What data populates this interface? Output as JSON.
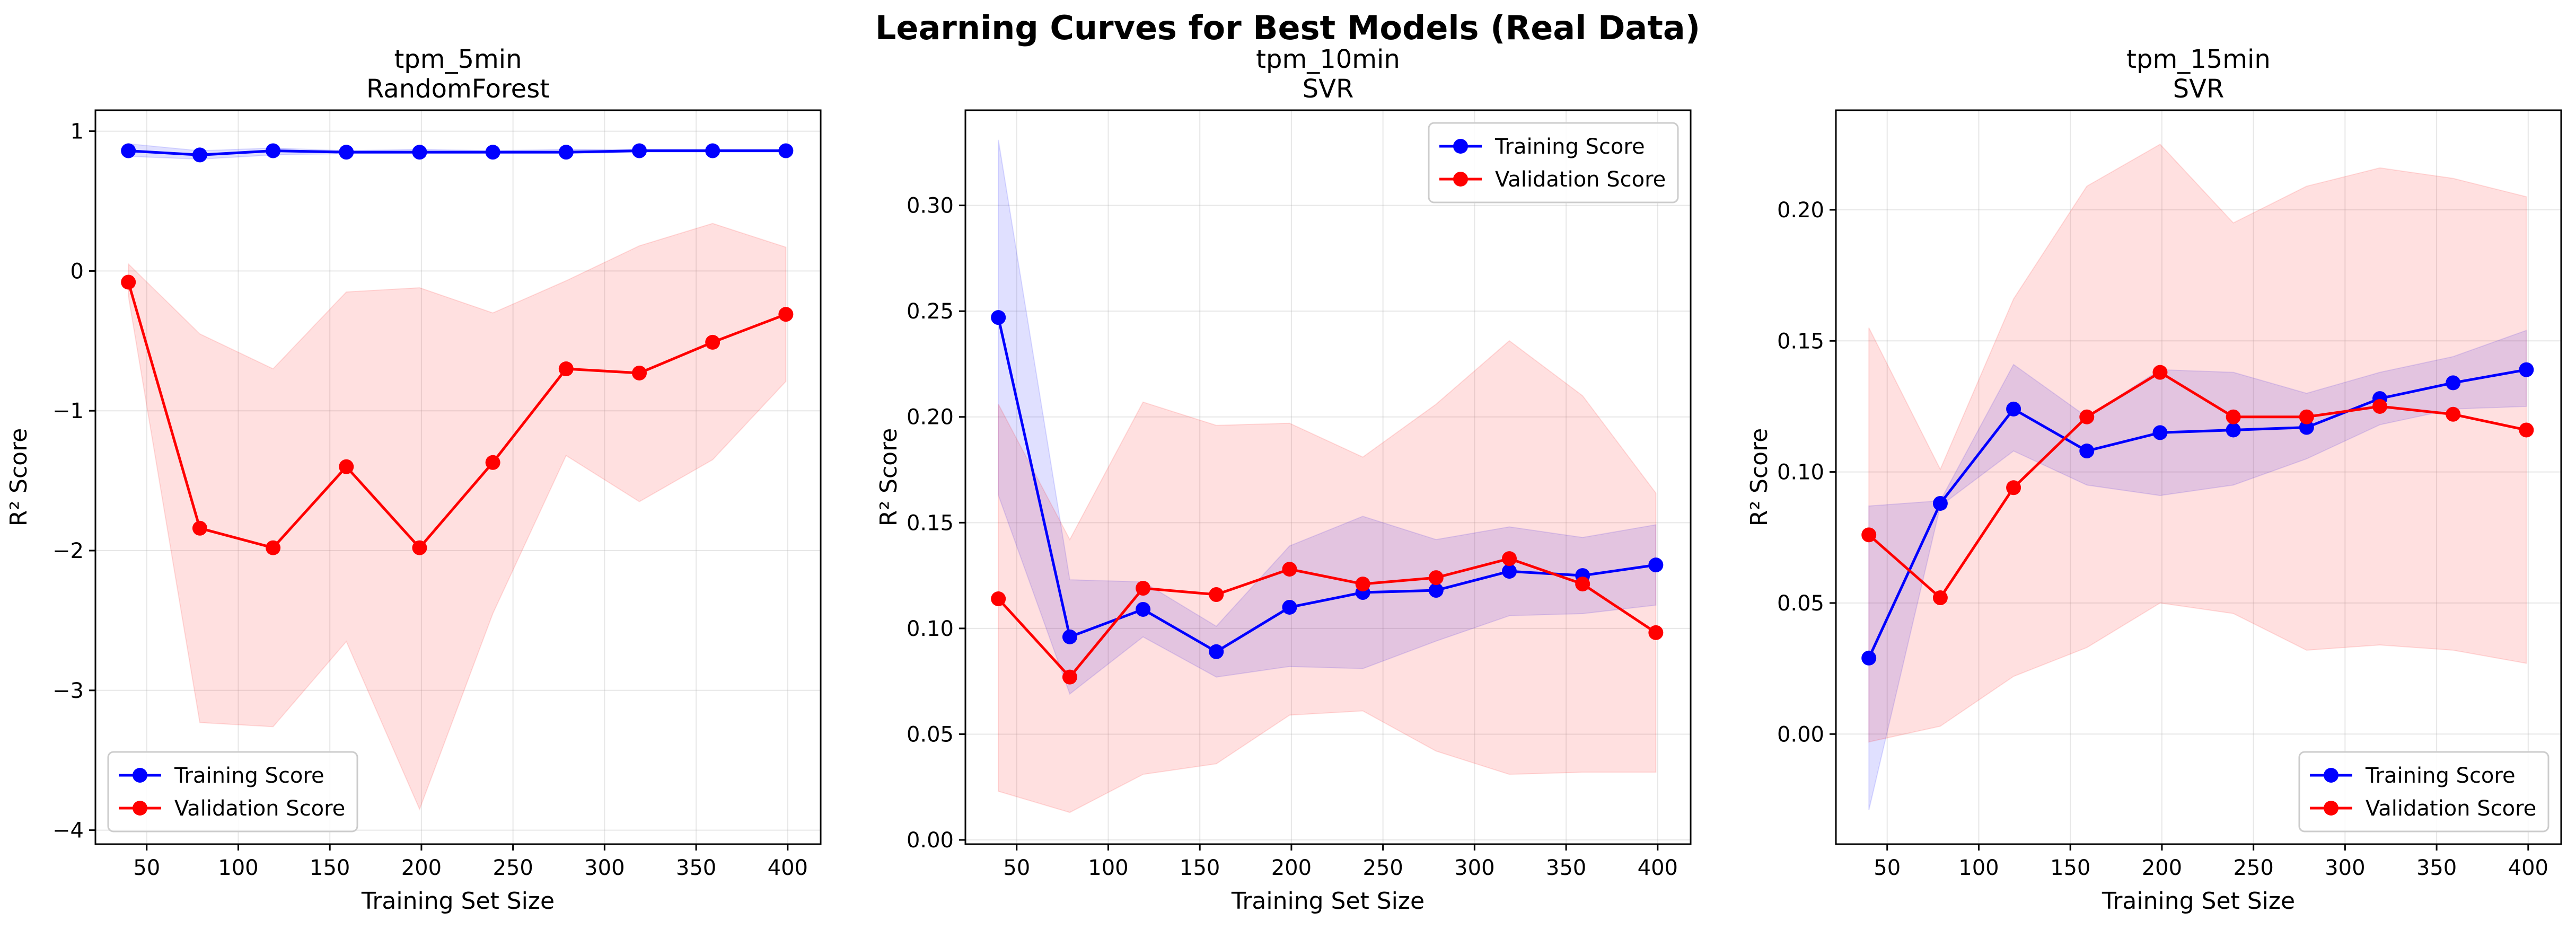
{
  "figure": {
    "title": "Learning Curves for Best Models (Real Data)"
  },
  "colors": {
    "training": "#0000ff",
    "validation": "#ff0000",
    "training_band": "#0000ff",
    "validation_band": "#ff0000",
    "grid": "#b0b0b0"
  },
  "chart_data": [
    {
      "type": "line",
      "title_line1": "tpm_5min",
      "title_line2": "RandomForest",
      "xlabel": "Training Set Size",
      "ylabel": "R² Score",
      "xlim": [
        22,
        418
      ],
      "ylim": [
        -4.1,
        1.15
      ],
      "xticks": [
        50,
        100,
        150,
        200,
        250,
        300,
        350,
        400
      ],
      "yticks": [
        -4,
        -3,
        -2,
        -1,
        0,
        1
      ],
      "ytick_labels": [
        "−4",
        "−3",
        "−2",
        "−1",
        "0",
        "1"
      ],
      "grid": true,
      "legend_position": "lower-left",
      "x": [
        40,
        79,
        119,
        159,
        199,
        239,
        279,
        319,
        359,
        399
      ],
      "series": [
        {
          "name": "Training Score",
          "color_key": "training",
          "values": [
            0.86,
            0.83,
            0.86,
            0.85,
            0.85,
            0.85,
            0.85,
            0.86,
            0.86,
            0.86
          ],
          "band_upper": [
            0.91,
            0.86,
            0.88,
            0.86,
            0.87,
            0.86,
            0.87,
            0.87,
            0.87,
            0.87
          ],
          "band_lower": [
            0.82,
            0.8,
            0.83,
            0.84,
            0.84,
            0.84,
            0.84,
            0.85,
            0.85,
            0.85
          ]
        },
        {
          "name": "Validation Score",
          "color_key": "validation",
          "values": [
            -0.08,
            -1.84,
            -1.98,
            -1.4,
            -1.98,
            -1.37,
            -0.7,
            -0.73,
            -0.51,
            -0.31
          ],
          "band_upper": [
            0.05,
            -0.45,
            -0.7,
            -0.15,
            -0.12,
            -0.3,
            -0.07,
            0.18,
            0.34,
            0.17
          ],
          "band_lower": [
            -0.18,
            -3.23,
            -3.26,
            -2.65,
            -3.85,
            -2.45,
            -1.32,
            -1.65,
            -1.35,
            -0.79
          ]
        }
      ]
    },
    {
      "type": "line",
      "title_line1": "tpm_10min",
      "title_line2": "SVR",
      "xlabel": "Training Set Size",
      "ylabel": "R² Score",
      "xlim": [
        22,
        418
      ],
      "ylim": [
        -0.002,
        0.345
      ],
      "xticks": [
        50,
        100,
        150,
        200,
        250,
        300,
        350,
        400
      ],
      "yticks": [
        0.0,
        0.05,
        0.1,
        0.15,
        0.2,
        0.25,
        0.3
      ],
      "ytick_labels": [
        "0.00",
        "0.05",
        "0.10",
        "0.15",
        "0.20",
        "0.25",
        "0.30"
      ],
      "grid": true,
      "legend_position": "upper-right",
      "x": [
        40,
        79,
        119,
        159,
        199,
        239,
        279,
        319,
        359,
        399
      ],
      "series": [
        {
          "name": "Training Score",
          "color_key": "training",
          "values": [
            0.247,
            0.096,
            0.109,
            0.089,
            0.11,
            0.117,
            0.118,
            0.127,
            0.125,
            0.13
          ],
          "band_upper": [
            0.331,
            0.123,
            0.122,
            0.101,
            0.139,
            0.153,
            0.142,
            0.148,
            0.143,
            0.149
          ],
          "band_lower": [
            0.163,
            0.069,
            0.096,
            0.077,
            0.082,
            0.081,
            0.094,
            0.106,
            0.107,
            0.111
          ]
        },
        {
          "name": "Validation Score",
          "color_key": "validation",
          "values": [
            0.114,
            0.077,
            0.119,
            0.116,
            0.128,
            0.121,
            0.124,
            0.133,
            0.121,
            0.098
          ],
          "band_upper": [
            0.206,
            0.142,
            0.207,
            0.196,
            0.197,
            0.181,
            0.206,
            0.236,
            0.21,
            0.164
          ],
          "band_lower": [
            0.023,
            0.013,
            0.031,
            0.036,
            0.059,
            0.061,
            0.042,
            0.031,
            0.032,
            0.032
          ]
        }
      ]
    },
    {
      "type": "line",
      "title_line1": "tpm_15min",
      "title_line2": "SVR",
      "xlabel": "Training Set Size",
      "ylabel": "R² Score",
      "xlim": [
        22,
        418
      ],
      "ylim": [
        -0.042,
        0.238
      ],
      "xticks": [
        50,
        100,
        150,
        200,
        250,
        300,
        350,
        400
      ],
      "yticks": [
        0.0,
        0.05,
        0.1,
        0.15,
        0.2
      ],
      "ytick_labels": [
        "0.00",
        "0.05",
        "0.10",
        "0.15",
        "0.20"
      ],
      "grid": true,
      "legend_position": "lower-right",
      "x": [
        40,
        79,
        119,
        159,
        199,
        239,
        279,
        319,
        359,
        399
      ],
      "series": [
        {
          "name": "Training Score",
          "color_key": "training",
          "values": [
            0.029,
            0.088,
            0.124,
            0.108,
            0.115,
            0.116,
            0.117,
            0.128,
            0.134,
            0.139
          ],
          "band_upper": [
            0.087,
            0.089,
            0.141,
            0.121,
            0.139,
            0.138,
            0.13,
            0.138,
            0.144,
            0.154
          ],
          "band_lower": [
            -0.029,
            0.087,
            0.108,
            0.095,
            0.091,
            0.095,
            0.105,
            0.118,
            0.124,
            0.125
          ]
        },
        {
          "name": "Validation Score",
          "color_key": "validation",
          "values": [
            0.076,
            0.052,
            0.094,
            0.121,
            0.138,
            0.121,
            0.121,
            0.125,
            0.122,
            0.116
          ],
          "band_upper": [
            0.155,
            0.101,
            0.166,
            0.209,
            0.225,
            0.195,
            0.209,
            0.216,
            0.212,
            0.205
          ],
          "band_lower": [
            -0.003,
            0.003,
            0.022,
            0.033,
            0.05,
            0.046,
            0.032,
            0.034,
            0.032,
            0.027
          ]
        }
      ]
    }
  ]
}
